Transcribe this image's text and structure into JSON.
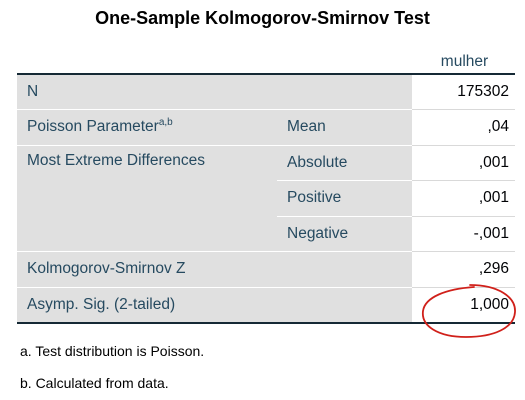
{
  "title": "One-Sample Kolmogorov-Smirnov Test",
  "column_header": "mulher",
  "rows": {
    "n": {
      "label": "N",
      "value": "175302"
    },
    "poisson": {
      "label": "Poisson Parameter",
      "superscript": "a,b",
      "sublabel": "Mean",
      "value": ",04"
    },
    "extreme": {
      "label": "Most Extreme Differences",
      "absolute": {
        "sublabel": "Absolute",
        "value": ",001"
      },
      "positive": {
        "sublabel": "Positive",
        "value": ",001"
      },
      "negative": {
        "sublabel": "Negative",
        "value": "-,001"
      }
    },
    "ks_z": {
      "label": "Kolmogorov-Smirnov Z",
      "value": ",296"
    },
    "asymp_sig": {
      "label": "Asymp. Sig. (2-tailed)",
      "value": "1,000"
    }
  },
  "footnotes": {
    "a": "a. Test distribution is Poisson.",
    "b": "b. Calculated from data."
  },
  "colors": {
    "label_background": "#e0e0e0",
    "label_text": "#264a60",
    "rule": "#152935",
    "highlight_circle": "#d0201a"
  }
}
